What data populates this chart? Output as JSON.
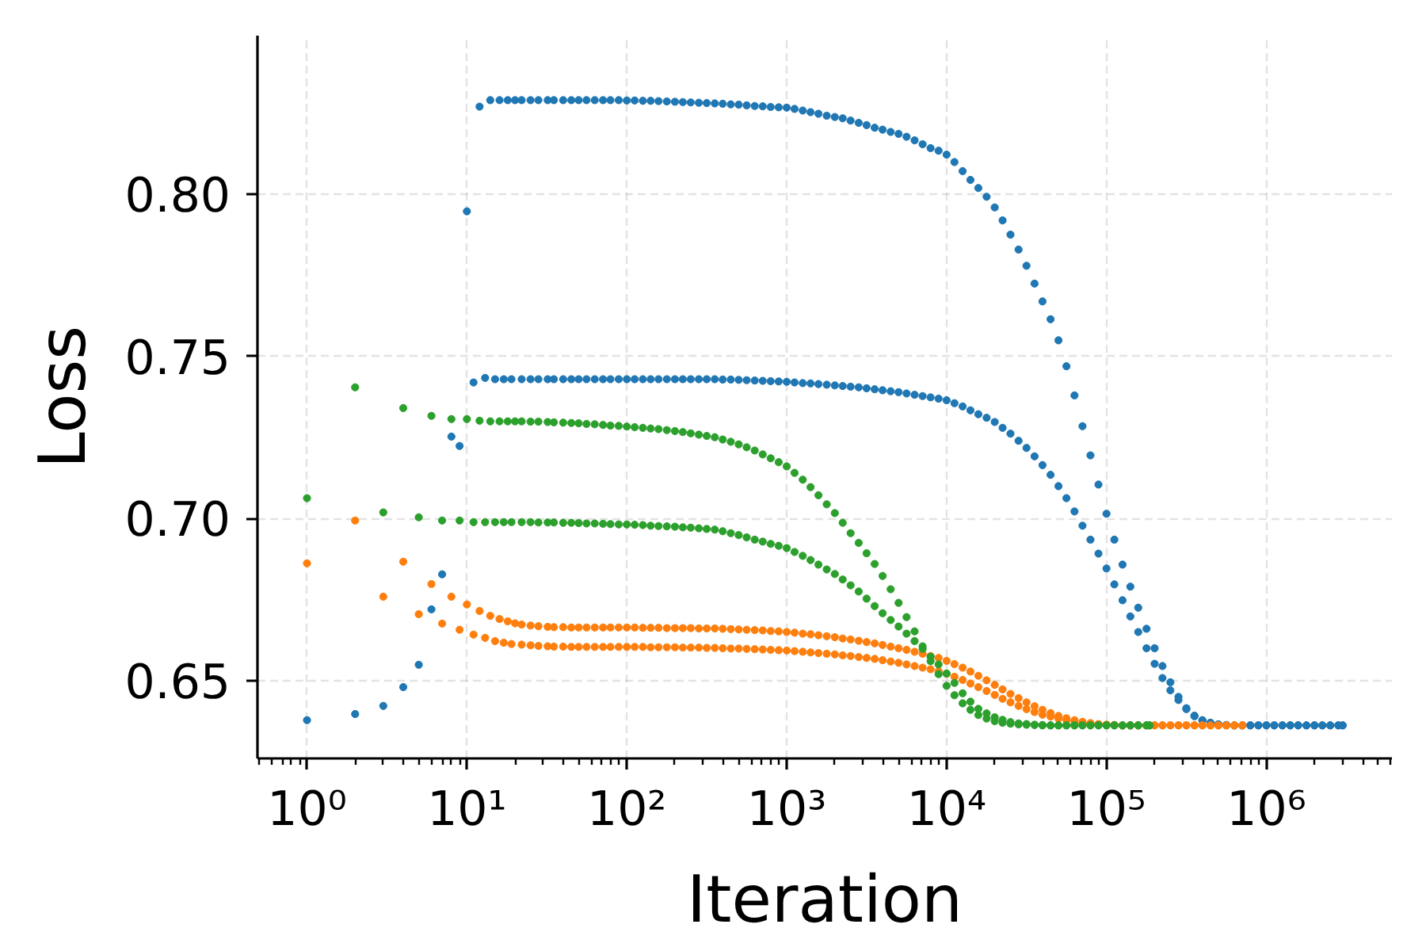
{
  "chart_data": {
    "type": "scatter",
    "xlabel": "Iteration",
    "ylabel": "Loss",
    "log": "x",
    "grid": true,
    "marker": "circle",
    "xlim": [
      0.49,
      6100000
    ],
    "ylim": [
      0.626,
      0.849
    ],
    "xticks": [
      {
        "value": 1,
        "label": "10⁰"
      },
      {
        "value": 10,
        "label": "10¹"
      },
      {
        "value": 100,
        "label": "10²"
      },
      {
        "value": 1000,
        "label": "10³"
      },
      {
        "value": 10000,
        "label": "10⁴"
      },
      {
        "value": 100000,
        "label": "10⁵"
      },
      {
        "value": 1000000,
        "label": "10⁶"
      }
    ],
    "yticks": [
      0.65,
      {
        "value": 0.7,
        "label": "0.70"
      },
      0.75,
      {
        "value": 0.8,
        "label": "0.80"
      }
    ],
    "series": [
      {
        "color": "#1f77b4",
        "x": [
          2,
          4,
          6,
          8,
          10,
          12,
          14,
          16,
          18,
          20,
          22,
          25,
          28,
          32,
          35,
          40,
          45,
          50,
          56,
          63,
          71,
          79,
          89,
          100,
          112,
          126,
          141,
          158,
          178,
          200,
          224,
          251,
          282,
          316,
          355,
          398,
          447,
          501,
          562,
          631,
          708,
          794,
          891,
          1000,
          1120,
          1260,
          1410,
          1580,
          1780,
          2000,
          2240,
          2510,
          2820,
          3160,
          3550,
          3980,
          4470,
          5010,
          5620,
          6310,
          7080,
          7940,
          8910,
          10000,
          11200,
          12600,
          14100,
          15800,
          17800,
          20000,
          22400,
          25100,
          28200,
          31600,
          35500,
          39800,
          44700,
          50100,
          56200,
          63100,
          70800,
          79400,
          89100,
          100000,
          112000,
          126000,
          141000,
          158000,
          178000,
          200000,
          224000,
          251000,
          282000,
          316000,
          355000,
          398000,
          447000,
          501000,
          562000,
          631000,
          708000,
          794000,
          891000,
          1000000,
          1120000,
          1260000,
          1410000,
          1580000,
          1780000,
          2000000,
          2240000,
          2510000,
          2820000,
          3000000
        ],
        "values": [
          0.6397,
          0.648,
          0.672,
          0.7253,
          0.7948,
          0.8271,
          0.8291,
          0.8291,
          0.8291,
          0.8291,
          0.8291,
          0.8291,
          0.8291,
          0.8291,
          0.8291,
          0.8291,
          0.8291,
          0.8291,
          0.8291,
          0.8291,
          0.8291,
          0.8291,
          0.8291,
          0.829,
          0.829,
          0.8289,
          0.8289,
          0.8288,
          0.8287,
          0.8286,
          0.8285,
          0.8284,
          0.8283,
          0.8282,
          0.8281,
          0.828,
          0.8278,
          0.8277,
          0.8275,
          0.8273,
          0.8272,
          0.827,
          0.8269,
          0.8268,
          0.8264,
          0.8259,
          0.8254,
          0.8249,
          0.8243,
          0.8239,
          0.8235,
          0.8228,
          0.8221,
          0.8214,
          0.8206,
          0.82,
          0.8193,
          0.8187,
          0.8178,
          0.8167,
          0.8155,
          0.8143,
          0.8135,
          0.8123,
          0.81,
          0.8072,
          0.8045,
          0.802,
          0.7993,
          0.796,
          0.792,
          0.7876,
          0.783,
          0.778,
          0.7725,
          0.767,
          0.7615,
          0.755,
          0.747,
          0.738,
          0.7285,
          0.7195,
          0.7105,
          0.7015,
          0.6935,
          0.6858,
          0.679,
          0.6725,
          0.666,
          0.66,
          0.6545,
          0.6495,
          0.645,
          0.6415,
          0.6392,
          0.6378,
          0.637,
          0.6365,
          0.6363,
          0.6362,
          0.6362,
          0.6362,
          0.6362,
          0.6362,
          0.6362,
          0.6362,
          0.6362,
          0.6362,
          0.6362,
          0.6362,
          0.6362,
          0.6362,
          0.6362,
          0.6362
        ]
      },
      {
        "color": "#1f77b4",
        "x": [
          1,
          3,
          5,
          7,
          9,
          11,
          13,
          15,
          17,
          19,
          22,
          25,
          28,
          32,
          35,
          40,
          45,
          50,
          56,
          63,
          71,
          79,
          89,
          100,
          112,
          126,
          141,
          158,
          178,
          200,
          224,
          251,
          282,
          316,
          355,
          398,
          447,
          501,
          562,
          631,
          708,
          794,
          891,
          1000,
          1120,
          1260,
          1410,
          1580,
          1780,
          2000,
          2240,
          2510,
          2820,
          3160,
          3550,
          3980,
          4470,
          5010,
          5620,
          6310,
          7080,
          7940,
          8910,
          10000,
          11200,
          12600,
          14100,
          15800,
          17800,
          20000,
          22400,
          25100,
          28200,
          31600,
          35500,
          39800,
          44700,
          50100,
          56200,
          63100,
          70800,
          79400,
          89100,
          100000,
          112000,
          126000,
          141000,
          158000,
          178000,
          200000,
          224000,
          251000,
          282000,
          316000,
          355000,
          398000,
          447000,
          501000,
          562000,
          631000,
          708000,
          794000,
          891000,
          1000000,
          1120000,
          1260000,
          1410000,
          1580000,
          1780000,
          2000000,
          2240000,
          2510000,
          2820000,
          3000000
        ],
        "values": [
          0.6378,
          0.6422,
          0.6549,
          0.6828,
          0.7224,
          0.742,
          0.7434,
          0.743,
          0.743,
          0.743,
          0.743,
          0.743,
          0.743,
          0.743,
          0.743,
          0.743,
          0.743,
          0.743,
          0.743,
          0.743,
          0.743,
          0.743,
          0.743,
          0.743,
          0.743,
          0.743,
          0.743,
          0.743,
          0.743,
          0.743,
          0.743,
          0.743,
          0.743,
          0.743,
          0.743,
          0.7429,
          0.7429,
          0.7428,
          0.7427,
          0.7426,
          0.7425,
          0.7424,
          0.7423,
          0.7422,
          0.742,
          0.7418,
          0.7417,
          0.7415,
          0.7413,
          0.7411,
          0.7409,
          0.7407,
          0.7405,
          0.7402,
          0.7399,
          0.7396,
          0.7393,
          0.739,
          0.7386,
          0.7382,
          0.7378,
          0.7374,
          0.737,
          0.7365,
          0.7356,
          0.7346,
          0.7334,
          0.7322,
          0.7311,
          0.7298,
          0.728,
          0.7262,
          0.724,
          0.7218,
          0.7192,
          0.7165,
          0.7135,
          0.71,
          0.7063,
          0.7022,
          0.6978,
          0.6935,
          0.6892,
          0.6846,
          0.6797,
          0.6748,
          0.6698,
          0.665,
          0.66,
          0.6552,
          0.6508,
          0.647,
          0.644,
          0.6412,
          0.639,
          0.6377,
          0.637,
          0.6365,
          0.6363,
          0.6362,
          0.6362,
          0.6362,
          0.6362,
          0.6362,
          0.6362,
          0.6362,
          0.6362,
          0.6362,
          0.6362,
          0.6362,
          0.6362,
          0.6362,
          0.6362,
          0.6362
        ]
      },
      {
        "color": "#ff7f0e",
        "x": [
          2,
          4,
          6,
          8,
          10,
          12,
          14,
          16,
          18,
          20,
          22,
          25,
          28,
          32,
          35,
          40,
          45,
          50,
          56,
          63,
          71,
          79,
          89,
          100,
          112,
          126,
          141,
          158,
          178,
          200,
          224,
          251,
          282,
          316,
          355,
          398,
          447,
          501,
          562,
          631,
          708,
          794,
          891,
          1000,
          1120,
          1260,
          1410,
          1580,
          1780,
          2000,
          2240,
          2510,
          2820,
          3160,
          3550,
          3980,
          4470,
          5010,
          5620,
          6310,
          7080,
          7940,
          8910,
          10000,
          11200,
          12600,
          14100,
          15800,
          17800,
          20000,
          22400,
          25100,
          28200,
          31600,
          35500,
          39800,
          44700,
          50100,
          56200,
          63100,
          70800,
          79400,
          89100,
          100000,
          112000,
          126000,
          141000,
          158000,
          178000,
          200000,
          224000,
          251000,
          282000,
          316000,
          355000,
          398000,
          447000,
          501000,
          562000,
          631000,
          708000
        ],
        "values": [
          0.6994,
          0.6867,
          0.6798,
          0.6759,
          0.6735,
          0.6715,
          0.67,
          0.669,
          0.6683,
          0.6677,
          0.6673,
          0.667,
          0.6668,
          0.6666,
          0.6665,
          0.6665,
          0.6664,
          0.6664,
          0.6664,
          0.6664,
          0.6664,
          0.6664,
          0.6664,
          0.6664,
          0.6664,
          0.6663,
          0.6663,
          0.6663,
          0.6662,
          0.6662,
          0.6662,
          0.6662,
          0.6661,
          0.6661,
          0.6661,
          0.666,
          0.6659,
          0.6658,
          0.6657,
          0.6656,
          0.6655,
          0.6653,
          0.6652,
          0.665,
          0.6648,
          0.6645,
          0.6643,
          0.664,
          0.6637,
          0.6634,
          0.663,
          0.6627,
          0.6623,
          0.6619,
          0.6615,
          0.661,
          0.6605,
          0.66,
          0.6595,
          0.6589,
          0.6583,
          0.6576,
          0.657,
          0.6561,
          0.6551,
          0.654,
          0.6528,
          0.6515,
          0.6501,
          0.6487,
          0.6473,
          0.6459,
          0.6446,
          0.6433,
          0.6421,
          0.641,
          0.64,
          0.6391,
          0.6384,
          0.6378,
          0.6373,
          0.6369,
          0.6366,
          0.6364,
          0.6363,
          0.6362,
          0.6362,
          0.6362,
          0.6362,
          0.6362,
          0.6362,
          0.6362,
          0.6362,
          0.6362,
          0.6362,
          0.6362,
          0.6362,
          0.6362,
          0.6362,
          0.6362,
          0.6362
        ]
      },
      {
        "color": "#ff7f0e",
        "x": [
          1,
          3,
          5,
          7,
          9,
          11,
          13,
          15,
          17,
          19,
          22,
          25,
          28,
          32,
          35,
          40,
          45,
          50,
          56,
          63,
          71,
          79,
          89,
          100,
          112,
          126,
          141,
          158,
          178,
          200,
          224,
          251,
          282,
          316,
          355,
          398,
          447,
          501,
          562,
          631,
          708,
          794,
          891,
          1000,
          1120,
          1260,
          1410,
          1580,
          1780,
          2000,
          2240,
          2510,
          2820,
          3160,
          3550,
          3980,
          4470,
          5010,
          5620,
          6310,
          7080,
          7940,
          8910,
          10000,
          11200,
          12600,
          14100,
          15800,
          17800,
          20000,
          22400,
          25100,
          28200,
          31600,
          35500,
          39800,
          44700,
          50100,
          56200,
          63100,
          70800,
          79400,
          89100,
          100000,
          112000,
          126000,
          141000,
          158000,
          178000,
          200000,
          224000,
          251000,
          282000,
          316000,
          355000,
          398000,
          447000,
          501000,
          562000,
          631000,
          708000
        ],
        "values": [
          0.6862,
          0.6759,
          0.6705,
          0.6676,
          0.6657,
          0.6642,
          0.6632,
          0.6622,
          0.6617,
          0.6613,
          0.6611,
          0.6609,
          0.6607,
          0.6606,
          0.6605,
          0.6605,
          0.6604,
          0.6604,
          0.6604,
          0.6604,
          0.6604,
          0.6604,
          0.6604,
          0.6604,
          0.6604,
          0.6604,
          0.6603,
          0.6603,
          0.6603,
          0.6603,
          0.6602,
          0.6602,
          0.6602,
          0.6601,
          0.6601,
          0.66,
          0.6599,
          0.6599,
          0.6598,
          0.6597,
          0.6596,
          0.6595,
          0.6594,
          0.6593,
          0.6591,
          0.6589,
          0.6587,
          0.6585,
          0.6583,
          0.6581,
          0.6578,
          0.6576,
          0.6573,
          0.657,
          0.6567,
          0.6563,
          0.6559,
          0.6555,
          0.655,
          0.6545,
          0.654,
          0.6535,
          0.6529,
          0.6521,
          0.6512,
          0.6502,
          0.6491,
          0.648,
          0.6468,
          0.6456,
          0.6444,
          0.6433,
          0.6422,
          0.6412,
          0.6403,
          0.6395,
          0.6389,
          0.6383,
          0.6378,
          0.6374,
          0.637,
          0.6367,
          0.6365,
          0.6364,
          0.6363,
          0.6362,
          0.6362,
          0.6362,
          0.6362,
          0.6362,
          0.6362,
          0.6362,
          0.6362,
          0.6362,
          0.6362,
          0.6362,
          0.6362,
          0.6362,
          0.6362,
          0.6362,
          0.6362
        ]
      },
      {
        "color": "#2ca02c",
        "x": [
          2,
          4,
          6,
          8,
          10,
          12,
          14,
          16,
          18,
          20,
          22,
          25,
          28,
          32,
          35,
          40,
          45,
          50,
          56,
          63,
          71,
          79,
          89,
          100,
          112,
          126,
          141,
          158,
          178,
          200,
          224,
          251,
          282,
          316,
          355,
          398,
          447,
          501,
          562,
          631,
          708,
          794,
          891,
          1000,
          1120,
          1260,
          1410,
          1580,
          1780,
          2000,
          2240,
          2510,
          2820,
          3160,
          3550,
          3980,
          4470,
          5010,
          5620,
          6310,
          7080,
          7940,
          8910,
          10000,
          11200,
          12600,
          14100,
          15800,
          17800,
          20000,
          22400,
          25100,
          28200,
          31600,
          35500,
          39800,
          44700,
          50100,
          56200,
          63100,
          70800,
          79400,
          89100,
          100000,
          112000,
          126000,
          141000,
          158000,
          178000,
          186000
        ],
        "values": [
          0.7405,
          0.7341,
          0.7317,
          0.7307,
          0.7307,
          0.7302,
          0.73,
          0.73,
          0.73,
          0.73,
          0.73,
          0.7299,
          0.7299,
          0.7298,
          0.7297,
          0.7296,
          0.7295,
          0.7294,
          0.7292,
          0.7291,
          0.7289,
          0.7287,
          0.7286,
          0.7284,
          0.7282,
          0.728,
          0.7278,
          0.7276,
          0.7273,
          0.727,
          0.7267,
          0.7263,
          0.7259,
          0.7255,
          0.7251,
          0.7244,
          0.7237,
          0.7229,
          0.722,
          0.721,
          0.7198,
          0.7186,
          0.7174,
          0.7161,
          0.7141,
          0.712,
          0.7097,
          0.7072,
          0.7044,
          0.7017,
          0.6987,
          0.6955,
          0.6925,
          0.6893,
          0.686,
          0.6823,
          0.6782,
          0.674,
          0.6696,
          0.6652,
          0.6606,
          0.656,
          0.652,
          0.6484,
          0.6455,
          0.643,
          0.641,
          0.6394,
          0.6383,
          0.6375,
          0.637,
          0.6367,
          0.6365,
          0.6364,
          0.6363,
          0.6362,
          0.6362,
          0.6362,
          0.6362,
          0.6362,
          0.6362,
          0.6362,
          0.6362,
          0.6362,
          0.6362,
          0.6362,
          0.6362,
          0.6362,
          0.6362,
          0.6362
        ]
      },
      {
        "color": "#2ca02c",
        "x": [
          1,
          3,
          5,
          7,
          9,
          11,
          13,
          15,
          17,
          19,
          22,
          25,
          28,
          32,
          35,
          40,
          45,
          50,
          56,
          63,
          71,
          79,
          89,
          100,
          112,
          126,
          141,
          158,
          178,
          200,
          224,
          251,
          282,
          316,
          355,
          398,
          447,
          501,
          562,
          631,
          708,
          794,
          891,
          1000,
          1120,
          1260,
          1410,
          1580,
          1780,
          2000,
          2240,
          2510,
          2820,
          3160,
          3550,
          3980,
          4470,
          5010,
          5620,
          6310,
          7080,
          7940,
          8910,
          10000,
          11200,
          12600,
          14100,
          15800,
          17800,
          20000,
          22400,
          25100,
          28200,
          31600,
          35500,
          39800,
          44700,
          50100,
          56200,
          63100,
          70800,
          79400,
          89100,
          100000,
          112000,
          126000,
          141000,
          158000,
          178000,
          186000
        ],
        "values": [
          0.7063,
          0.7019,
          0.7004,
          0.6994,
          0.6994,
          0.6989,
          0.6989,
          0.6989,
          0.6989,
          0.6989,
          0.6989,
          0.6989,
          0.6988,
          0.6988,
          0.6988,
          0.6987,
          0.6987,
          0.6986,
          0.6985,
          0.6985,
          0.6984,
          0.6983,
          0.6982,
          0.6982,
          0.6981,
          0.698,
          0.6978,
          0.6977,
          0.6976,
          0.6975,
          0.6973,
          0.6972,
          0.697,
          0.6968,
          0.6966,
          0.6961,
          0.6955,
          0.6949,
          0.6942,
          0.6935,
          0.6929,
          0.6922,
          0.6916,
          0.6909,
          0.6897,
          0.6885,
          0.6872,
          0.6858,
          0.6843,
          0.6829,
          0.6812,
          0.6794,
          0.6775,
          0.6753,
          0.673,
          0.6708,
          0.6687,
          0.6667,
          0.6645,
          0.6622,
          0.6598,
          0.6574,
          0.655,
          0.6522,
          0.6493,
          0.6461,
          0.6435,
          0.6413,
          0.6399,
          0.6387,
          0.6379,
          0.6372,
          0.6368,
          0.6366,
          0.6364,
          0.6363,
          0.6362,
          0.6362,
          0.6362,
          0.6362,
          0.6362,
          0.6362,
          0.6362,
          0.6362,
          0.6362,
          0.6362,
          0.6362,
          0.6362,
          0.6362,
          0.6362
        ]
      }
    ]
  }
}
